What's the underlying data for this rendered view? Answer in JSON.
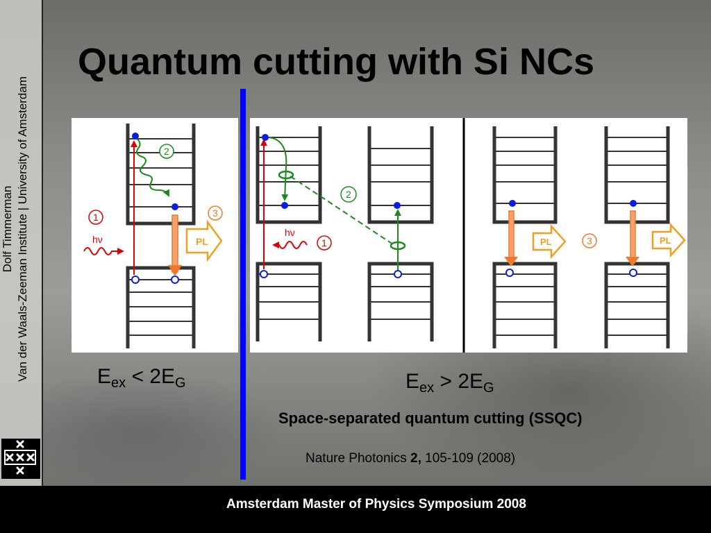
{
  "title": "Quantum cutting with Si NCs",
  "sidebar": {
    "author": "Dolf Timmerman",
    "affiliation": "Van der Waals-Zeeman Institute | University of Amsterdam"
  },
  "left_condition": {
    "e": "E",
    "ex": "ex",
    "op": " < 2E",
    "g": "G"
  },
  "right_condition": {
    "e": "E",
    "ex": "ex",
    "op": " > 2E",
    "g": "G"
  },
  "subtitle": "Space-separated quantum cutting (SSQC)",
  "reference": {
    "journal": "Nature Photonics ",
    "volume": "2,",
    "pages": " 105-109 (2008)"
  },
  "footer": "Amsterdam Master of Physics Symposium 2008",
  "diagram_labels": {
    "step1": "1",
    "step2": "2",
    "step3": "3",
    "photon": "hν",
    "pl": "PL"
  },
  "colors": {
    "divider": "#0000ff",
    "excitation_arrow": "#e00000",
    "relaxation": "#1a8a1a",
    "emission": "#f07a2a",
    "electron": "#0a1ee0"
  },
  "logo_icon": "university-of-amsterdam-xxx-icon"
}
